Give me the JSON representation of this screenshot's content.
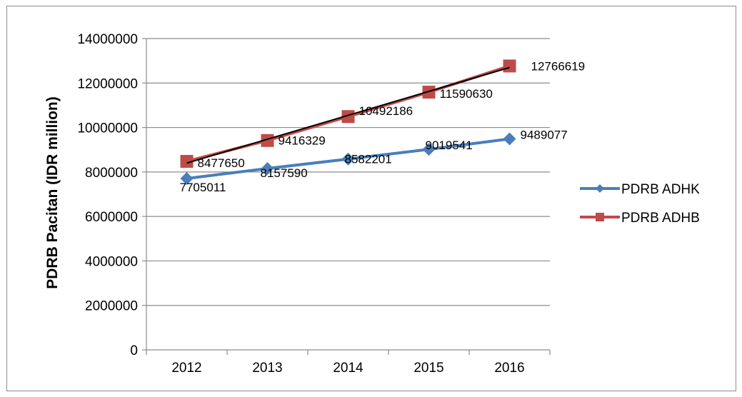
{
  "chart_data": {
    "type": "line",
    "title": "",
    "xlabel": "",
    "ylabel": "PDRB Pacitan (IDR million)",
    "categories": [
      "2012",
      "2013",
      "2014",
      "2015",
      "2016"
    ],
    "ylim": [
      0,
      14000000
    ],
    "yticks": [
      0,
      2000000,
      4000000,
      6000000,
      8000000,
      10000000,
      12000000,
      14000000
    ],
    "grid": true,
    "legend_position": "right",
    "series": [
      {
        "name": "PDRB ADHK",
        "values": [
          7705011,
          8157590,
          8582201,
          9019541,
          9489077
        ],
        "labels": [
          "7705011",
          "8157590",
          "8582201",
          "9019541",
          "9489077"
        ],
        "color": "#4a7ebb",
        "marker": "diamond"
      },
      {
        "name": "PDRB ADHB",
        "values": [
          8477650,
          9416329,
          10492186,
          11590630,
          12766619
        ],
        "labels": [
          "8477650",
          "9416329",
          "10492186",
          "11590630",
          "12766619"
        ],
        "color": "#be4b48",
        "marker": "square"
      }
    ],
    "trendline": {
      "series": "PDRB ADHB",
      "color": "#000000"
    }
  }
}
